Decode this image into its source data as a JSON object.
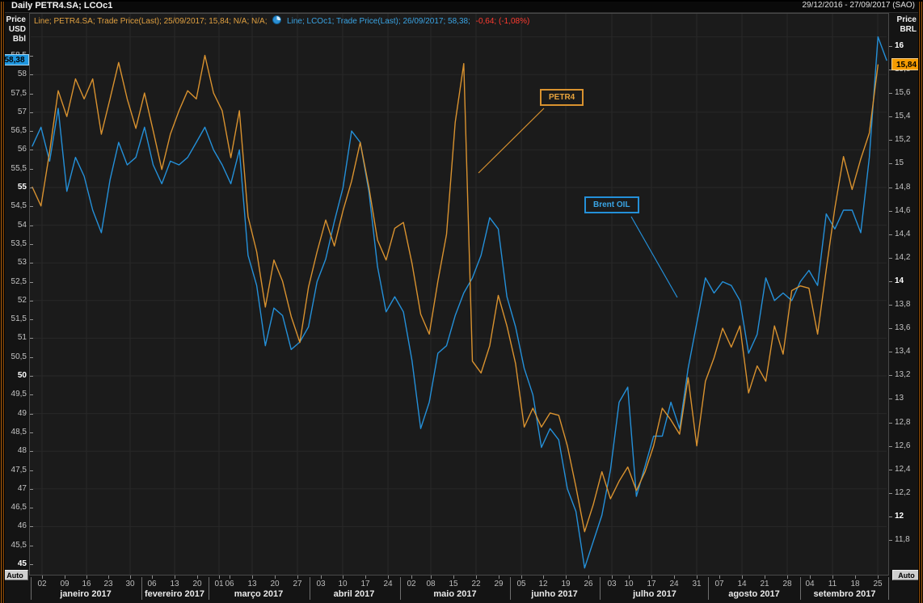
{
  "window": {
    "title": "Daily PETR4.SA; LCOc1",
    "date_range": "29/12/2016 - 27/09/2017 (SAO)"
  },
  "legend": {
    "petr4": "Line; PETR4.SA; Trade Price(Last); 25/09/2017; 15,84; N/A; N/A;",
    "instrument_icon": "refresh-circle-icon",
    "lco": "Line; LCOc1; Trade Price(Last); 26/09/2017; 58,38;",
    "lco_change": "-0,64; (-1,08%)"
  },
  "colors": {
    "petr4_orange": "#d9922f",
    "brent_blue": "#2490d9",
    "legend_red": "#ff3b30",
    "value_box_blue": "#1f97e0",
    "value_box_orange": "#f59b00",
    "grid": "#282828",
    "plot_bg": "#1b1b1b"
  },
  "axes": {
    "left": {
      "title_lines": [
        "Price",
        "USD",
        "Bbl"
      ],
      "auto_label": "Auto",
      "last_value": "58,38",
      "ticks": [
        {
          "label": "58,5",
          "v": 58.5
        },
        {
          "label": "58",
          "v": 58
        },
        {
          "label": "57,5",
          "v": 57.5
        },
        {
          "label": "57",
          "v": 57
        },
        {
          "label": "56,5",
          "v": 56.5
        },
        {
          "label": "56",
          "v": 56
        },
        {
          "label": "55,5",
          "v": 55.5
        },
        {
          "label": "55",
          "v": 55,
          "b": true
        },
        {
          "label": "54,5",
          "v": 54.5
        },
        {
          "label": "54",
          "v": 54
        },
        {
          "label": "53,5",
          "v": 53.5
        },
        {
          "label": "53",
          "v": 53
        },
        {
          "label": "52,5",
          "v": 52.5
        },
        {
          "label": "52",
          "v": 52
        },
        {
          "label": "51,5",
          "v": 51.5
        },
        {
          "label": "51",
          "v": 51
        },
        {
          "label": "50,5",
          "v": 50.5
        },
        {
          "label": "50",
          "v": 50,
          "b": true
        },
        {
          "label": "49,5",
          "v": 49.5
        },
        {
          "label": "49",
          "v": 49
        },
        {
          "label": "48,5",
          "v": 48.5
        },
        {
          "label": "48",
          "v": 48
        },
        {
          "label": "47,5",
          "v": 47.5
        },
        {
          "label": "47",
          "v": 47
        },
        {
          "label": "46,5",
          "v": 46.5
        },
        {
          "label": "46",
          "v": 46
        },
        {
          "label": "45,5",
          "v": 45.5
        },
        {
          "label": "45",
          "v": 45,
          "b": true
        }
      ]
    },
    "right": {
      "title_lines": [
        "Price",
        "BRL"
      ],
      "auto_label": "Auto",
      "last_value": "15,84",
      "ticks": [
        {
          "label": "16",
          "v": 16,
          "b": true
        },
        {
          "label": "15,8",
          "v": 15.8
        },
        {
          "label": "15,6",
          "v": 15.6
        },
        {
          "label": "15,4",
          "v": 15.4
        },
        {
          "label": "15,2",
          "v": 15.2
        },
        {
          "label": "15",
          "v": 15
        },
        {
          "label": "14,8",
          "v": 14.8
        },
        {
          "label": "14,6",
          "v": 14.6
        },
        {
          "label": "14,4",
          "v": 14.4
        },
        {
          "label": "14,2",
          "v": 14.2
        },
        {
          "label": "14",
          "v": 14,
          "b": true
        },
        {
          "label": "13,8",
          "v": 13.8
        },
        {
          "label": "13,6",
          "v": 13.6
        },
        {
          "label": "13,4",
          "v": 13.4
        },
        {
          "label": "13,2",
          "v": 13.2
        },
        {
          "label": "13",
          "v": 13
        },
        {
          "label": "12,8",
          "v": 12.8
        },
        {
          "label": "12,6",
          "v": 12.6
        },
        {
          "label": "12,4",
          "v": 12.4
        },
        {
          "label": "12,2",
          "v": 12.2
        },
        {
          "label": "12",
          "v": 12,
          "b": true
        },
        {
          "label": "11,8",
          "v": 11.8
        }
      ]
    },
    "bottom": {
      "day_ticks": [
        "02",
        "09",
        "16",
        "23",
        "30",
        "06",
        "13",
        "20",
        "01",
        "06",
        "13",
        "20",
        "27",
        "03",
        "10",
        "17",
        "24",
        "02",
        "08",
        "15",
        "22",
        "29",
        "05",
        "12",
        "19",
        "26",
        "03",
        "10",
        "17",
        "24",
        "31",
        "07",
        "14",
        "21",
        "28",
        "04",
        "11",
        "18",
        "25"
      ],
      "months": [
        "janeiro 2017",
        "fevereiro 2017",
        "março 2017",
        "abril 2017",
        "maio 2017",
        "junho 2017",
        "julho 2017",
        "agosto 2017",
        "setembro 2017"
      ]
    }
  },
  "annotations": [
    {
      "label": "PETR4",
      "series": "petr4"
    },
    {
      "label": "Brent OIL",
      "series": "brent"
    }
  ],
  "chart_data": {
    "type": "line",
    "title": "Daily PETR4.SA; LCOc1",
    "x_range": [
      "29/12/2016",
      "27/09/2017"
    ],
    "left_axis": {
      "label": "Price USD Bbl",
      "min": 44.8,
      "max": 59.8,
      "ticks_step": 0.5
    },
    "right_axis": {
      "label": "Price BRL",
      "min": 11.7,
      "max": 16.1,
      "ticks_step": 0.2
    },
    "grid": true,
    "dates": [
      "29/12",
      "02/01",
      "04/01",
      "06/01",
      "09/01",
      "11/01",
      "13/01",
      "17/01",
      "19/01",
      "23/01",
      "25/01",
      "27/01",
      "31/01",
      "02/02",
      "06/02",
      "08/02",
      "10/02",
      "14/02",
      "16/02",
      "20/02",
      "22/02",
      "24/02",
      "28/02",
      "02/03",
      "06/03",
      "08/03",
      "10/03",
      "14/03",
      "16/03",
      "20/03",
      "22/03",
      "24/03",
      "28/03",
      "30/03",
      "03/04",
      "05/04",
      "07/04",
      "11/04",
      "13/04",
      "18/04",
      "20/04",
      "24/04",
      "26/04",
      "28/04",
      "02/05",
      "04/05",
      "08/05",
      "10/05",
      "12/05",
      "16/05",
      "17/05",
      "18/05",
      "19/05",
      "23/05",
      "24/05",
      "26/05",
      "30/05",
      "01/06",
      "05/06",
      "07/06",
      "09/06",
      "13/06",
      "15/06",
      "19/06",
      "21/06",
      "23/06",
      "27/06",
      "29/06",
      "03/07",
      "05/07",
      "07/07",
      "11/07",
      "13/07",
      "17/07",
      "19/07",
      "21/07",
      "25/07",
      "27/07",
      "31/07",
      "02/08",
      "04/08",
      "08/08",
      "10/08",
      "14/08",
      "16/08",
      "18/08",
      "22/08",
      "24/08",
      "28/08",
      "30/08",
      "01/09",
      "05/09",
      "07/09",
      "11/09",
      "13/09",
      "15/09",
      "19/09",
      "21/09",
      "25/09",
      "26/09"
    ],
    "series": [
      {
        "name": "Brent OIL",
        "ric": "LCOc1",
        "axis": "left",
        "color": "#2490d9",
        "last_date": "26/09/2017",
        "last_value": 58.38,
        "net_change": "-0,64",
        "pct_change": "(-1,08%)",
        "values": [
          56.1,
          56.6,
          55.7,
          57.1,
          54.9,
          55.8,
          55.3,
          54.4,
          53.8,
          55.2,
          56.2,
          55.6,
          55.8,
          56.6,
          55.6,
          55.1,
          55.7,
          55.6,
          55.8,
          56.2,
          56.6,
          56.0,
          55.6,
          55.1,
          56.0,
          53.2,
          52.4,
          50.8,
          51.8,
          51.6,
          50.7,
          50.9,
          51.3,
          52.5,
          53.1,
          54.1,
          55.0,
          56.5,
          56.2,
          54.9,
          52.9,
          51.7,
          52.1,
          51.7,
          50.4,
          48.6,
          49.3,
          50.6,
          50.8,
          51.6,
          52.2,
          52.6,
          53.2,
          54.2,
          53.9,
          52.1,
          51.3,
          50.2,
          49.5,
          48.1,
          48.6,
          48.3,
          47.0,
          46.4,
          44.9,
          45.6,
          46.3,
          47.5,
          49.3,
          49.7,
          46.8,
          47.6,
          48.4,
          48.4,
          49.3,
          48.6,
          50.2,
          51.4,
          52.6,
          52.2,
          52.5,
          52.4,
          52.0,
          50.6,
          51.1,
          52.6,
          52.0,
          52.2,
          52.0,
          52.5,
          52.8,
          52.4,
          54.3,
          53.9,
          54.4,
          54.4,
          53.8,
          55.8,
          59.0,
          58.38
        ]
      },
      {
        "name": "PETR4",
        "ric": "PETR4.SA",
        "axis": "right",
        "color": "#d9922f",
        "last_date": "25/09/2017",
        "last_value": 15.84,
        "values": [
          14.8,
          14.64,
          15.1,
          15.62,
          15.4,
          15.72,
          15.55,
          15.72,
          15.25,
          15.55,
          15.86,
          15.55,
          15.3,
          15.6,
          15.28,
          14.95,
          15.25,
          15.45,
          15.62,
          15.55,
          15.92,
          15.6,
          15.45,
          15.05,
          15.45,
          14.55,
          14.25,
          13.78,
          14.18,
          14.0,
          13.7,
          13.48,
          13.95,
          14.25,
          14.52,
          14.3,
          14.6,
          14.85,
          15.18,
          14.8,
          14.35,
          14.18,
          14.45,
          14.5,
          14.15,
          13.72,
          13.55,
          14.0,
          14.4,
          15.35,
          15.85,
          13.32,
          13.22,
          13.45,
          13.88,
          13.62,
          13.3,
          12.76,
          12.92,
          12.76,
          12.88,
          12.86,
          12.6,
          12.25,
          11.87,
          12.1,
          12.38,
          12.15,
          12.3,
          12.42,
          12.22,
          12.38,
          12.6,
          12.92,
          12.82,
          12.7,
          13.18,
          12.6,
          13.15,
          13.35,
          13.6,
          13.44,
          13.62,
          13.05,
          13.28,
          13.15,
          13.62,
          13.38,
          13.92,
          13.96,
          13.94,
          13.55,
          14.1,
          14.62,
          15.06,
          14.78,
          15.04,
          15.26,
          15.84,
          null
        ]
      }
    ]
  }
}
